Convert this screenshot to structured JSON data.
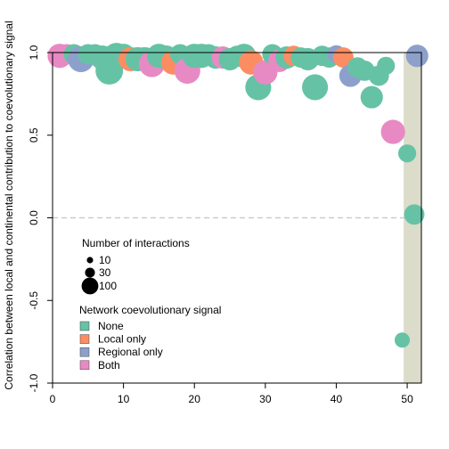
{
  "chart_data": {
    "type": "scatter",
    "title": "",
    "xlabel": "",
    "ylabel": "Correlation between local and continental contribution to coevolutionary signal",
    "xlim": [
      0,
      52
    ],
    "ylim": [
      -1.0,
      1.0
    ],
    "x_ticks": [
      0,
      10,
      20,
      30,
      40,
      50
    ],
    "y_ticks": [
      -1.0,
      -0.5,
      0.0,
      0.5,
      1.0
    ],
    "y_tick_labels": [
      "-1.0",
      "-0.5",
      "0.0",
      "0.5",
      "1.0"
    ],
    "reference_line": {
      "y": 0.0,
      "style": "dashed",
      "color": "#cccccc"
    },
    "shaded_region": {
      "x_from": 49.5,
      "x_to": 52,
      "color": "#dcdccb"
    },
    "colors": {
      "None": "#66c2a5",
      "Local only": "#fc8d62",
      "Regional only": "#8da0cb",
      "Both": "#e78ac3"
    },
    "size_legend": {
      "title": "Number of interactions",
      "entries": [
        {
          "label": "10",
          "value": 10
        },
        {
          "label": "30",
          "value": 30
        },
        {
          "label": "100",
          "value": 100
        }
      ]
    },
    "color_legend": {
      "title": "Network coevolutionary signal",
      "entries": [
        "None",
        "Local only",
        "Regional only",
        "Both"
      ]
    },
    "points": [
      {
        "x": 1,
        "y": 0.98,
        "size": 60,
        "group": "Both"
      },
      {
        "x": 2,
        "y": 0.99,
        "size": 40,
        "group": "Both"
      },
      {
        "x": 3,
        "y": 0.99,
        "size": 40,
        "group": "None"
      },
      {
        "x": 4,
        "y": 0.96,
        "size": 70,
        "group": "Regional only"
      },
      {
        "x": 5,
        "y": 0.99,
        "size": 40,
        "group": "None"
      },
      {
        "x": 6,
        "y": 0.99,
        "size": 40,
        "group": "None"
      },
      {
        "x": 7,
        "y": 0.97,
        "size": 60,
        "group": "None"
      },
      {
        "x": 8,
        "y": 0.89,
        "size": 80,
        "group": "None"
      },
      {
        "x": 9,
        "y": 0.98,
        "size": 70,
        "group": "None"
      },
      {
        "x": 10,
        "y": 0.98,
        "size": 60,
        "group": "None"
      },
      {
        "x": 11,
        "y": 0.96,
        "size": 60,
        "group": "Local only"
      },
      {
        "x": 12,
        "y": 0.96,
        "size": 60,
        "group": "None"
      },
      {
        "x": 13,
        "y": 0.96,
        "size": 60,
        "group": "None"
      },
      {
        "x": 14,
        "y": 0.93,
        "size": 70,
        "group": "Both"
      },
      {
        "x": 15,
        "y": 0.98,
        "size": 60,
        "group": "None"
      },
      {
        "x": 16,
        "y": 0.97,
        "size": 60,
        "group": "None"
      },
      {
        "x": 17,
        "y": 0.94,
        "size": 60,
        "group": "Local only"
      },
      {
        "x": 18,
        "y": 0.99,
        "size": 40,
        "group": "None"
      },
      {
        "x": 19,
        "y": 0.89,
        "size": 70,
        "group": "Both"
      },
      {
        "x": 20,
        "y": 0.98,
        "size": 60,
        "group": "None"
      },
      {
        "x": 21,
        "y": 0.98,
        "size": 60,
        "group": "None"
      },
      {
        "x": 22,
        "y": 0.99,
        "size": 40,
        "group": "None"
      },
      {
        "x": 23,
        "y": 0.97,
        "size": 50,
        "group": "None"
      },
      {
        "x": 24,
        "y": 0.97,
        "size": 50,
        "group": "Both"
      },
      {
        "x": 25,
        "y": 0.96,
        "size": 50,
        "group": "None"
      },
      {
        "x": 26,
        "y": 0.98,
        "size": 40,
        "group": "None"
      },
      {
        "x": 27,
        "y": 0.98,
        "size": 60,
        "group": "None"
      },
      {
        "x": 28,
        "y": 0.94,
        "size": 60,
        "group": "Local only"
      },
      {
        "x": 29,
        "y": 0.79,
        "size": 70,
        "group": "None"
      },
      {
        "x": 30,
        "y": 0.88,
        "size": 60,
        "group": "Both"
      },
      {
        "x": 31,
        "y": 0.99,
        "size": 40,
        "group": "None"
      },
      {
        "x": 32,
        "y": 0.95,
        "size": 50,
        "group": "Both"
      },
      {
        "x": 33,
        "y": 0.97,
        "size": 50,
        "group": "None"
      },
      {
        "x": 34,
        "y": 0.98,
        "size": 40,
        "group": "Local only"
      },
      {
        "x": 35,
        "y": 0.97,
        "size": 40,
        "group": "None"
      },
      {
        "x": 36,
        "y": 0.96,
        "size": 50,
        "group": "None"
      },
      {
        "x": 37,
        "y": 0.79,
        "size": 70,
        "group": "None"
      },
      {
        "x": 38,
        "y": 0.98,
        "size": 40,
        "group": "None"
      },
      {
        "x": 39,
        "y": 0.97,
        "size": 40,
        "group": "None"
      },
      {
        "x": 40,
        "y": 0.99,
        "size": 30,
        "group": "Regional only"
      },
      {
        "x": 41,
        "y": 0.97,
        "size": 40,
        "group": "Local only"
      },
      {
        "x": 42,
        "y": 0.86,
        "size": 50,
        "group": "Regional only"
      },
      {
        "x": 43,
        "y": 0.91,
        "size": 40,
        "group": "None"
      },
      {
        "x": 44,
        "y": 0.89,
        "size": 40,
        "group": "None"
      },
      {
        "x": 45,
        "y": 0.73,
        "size": 50,
        "group": "None"
      },
      {
        "x": 46,
        "y": 0.86,
        "size": 40,
        "group": "None"
      },
      {
        "x": 47,
        "y": 0.92,
        "size": 30,
        "group": "None"
      },
      {
        "x": 48,
        "y": 0.52,
        "size": 60,
        "group": "Both"
      },
      {
        "x": 49.3,
        "y": -0.74,
        "size": 20,
        "group": "None"
      },
      {
        "x": 50,
        "y": 0.39,
        "size": 30,
        "group": "None"
      },
      {
        "x": 51,
        "y": 0.02,
        "size": 40,
        "group": "None"
      },
      {
        "x": 51.4,
        "y": 0.98,
        "size": 50,
        "group": "Regional only"
      }
    ]
  }
}
